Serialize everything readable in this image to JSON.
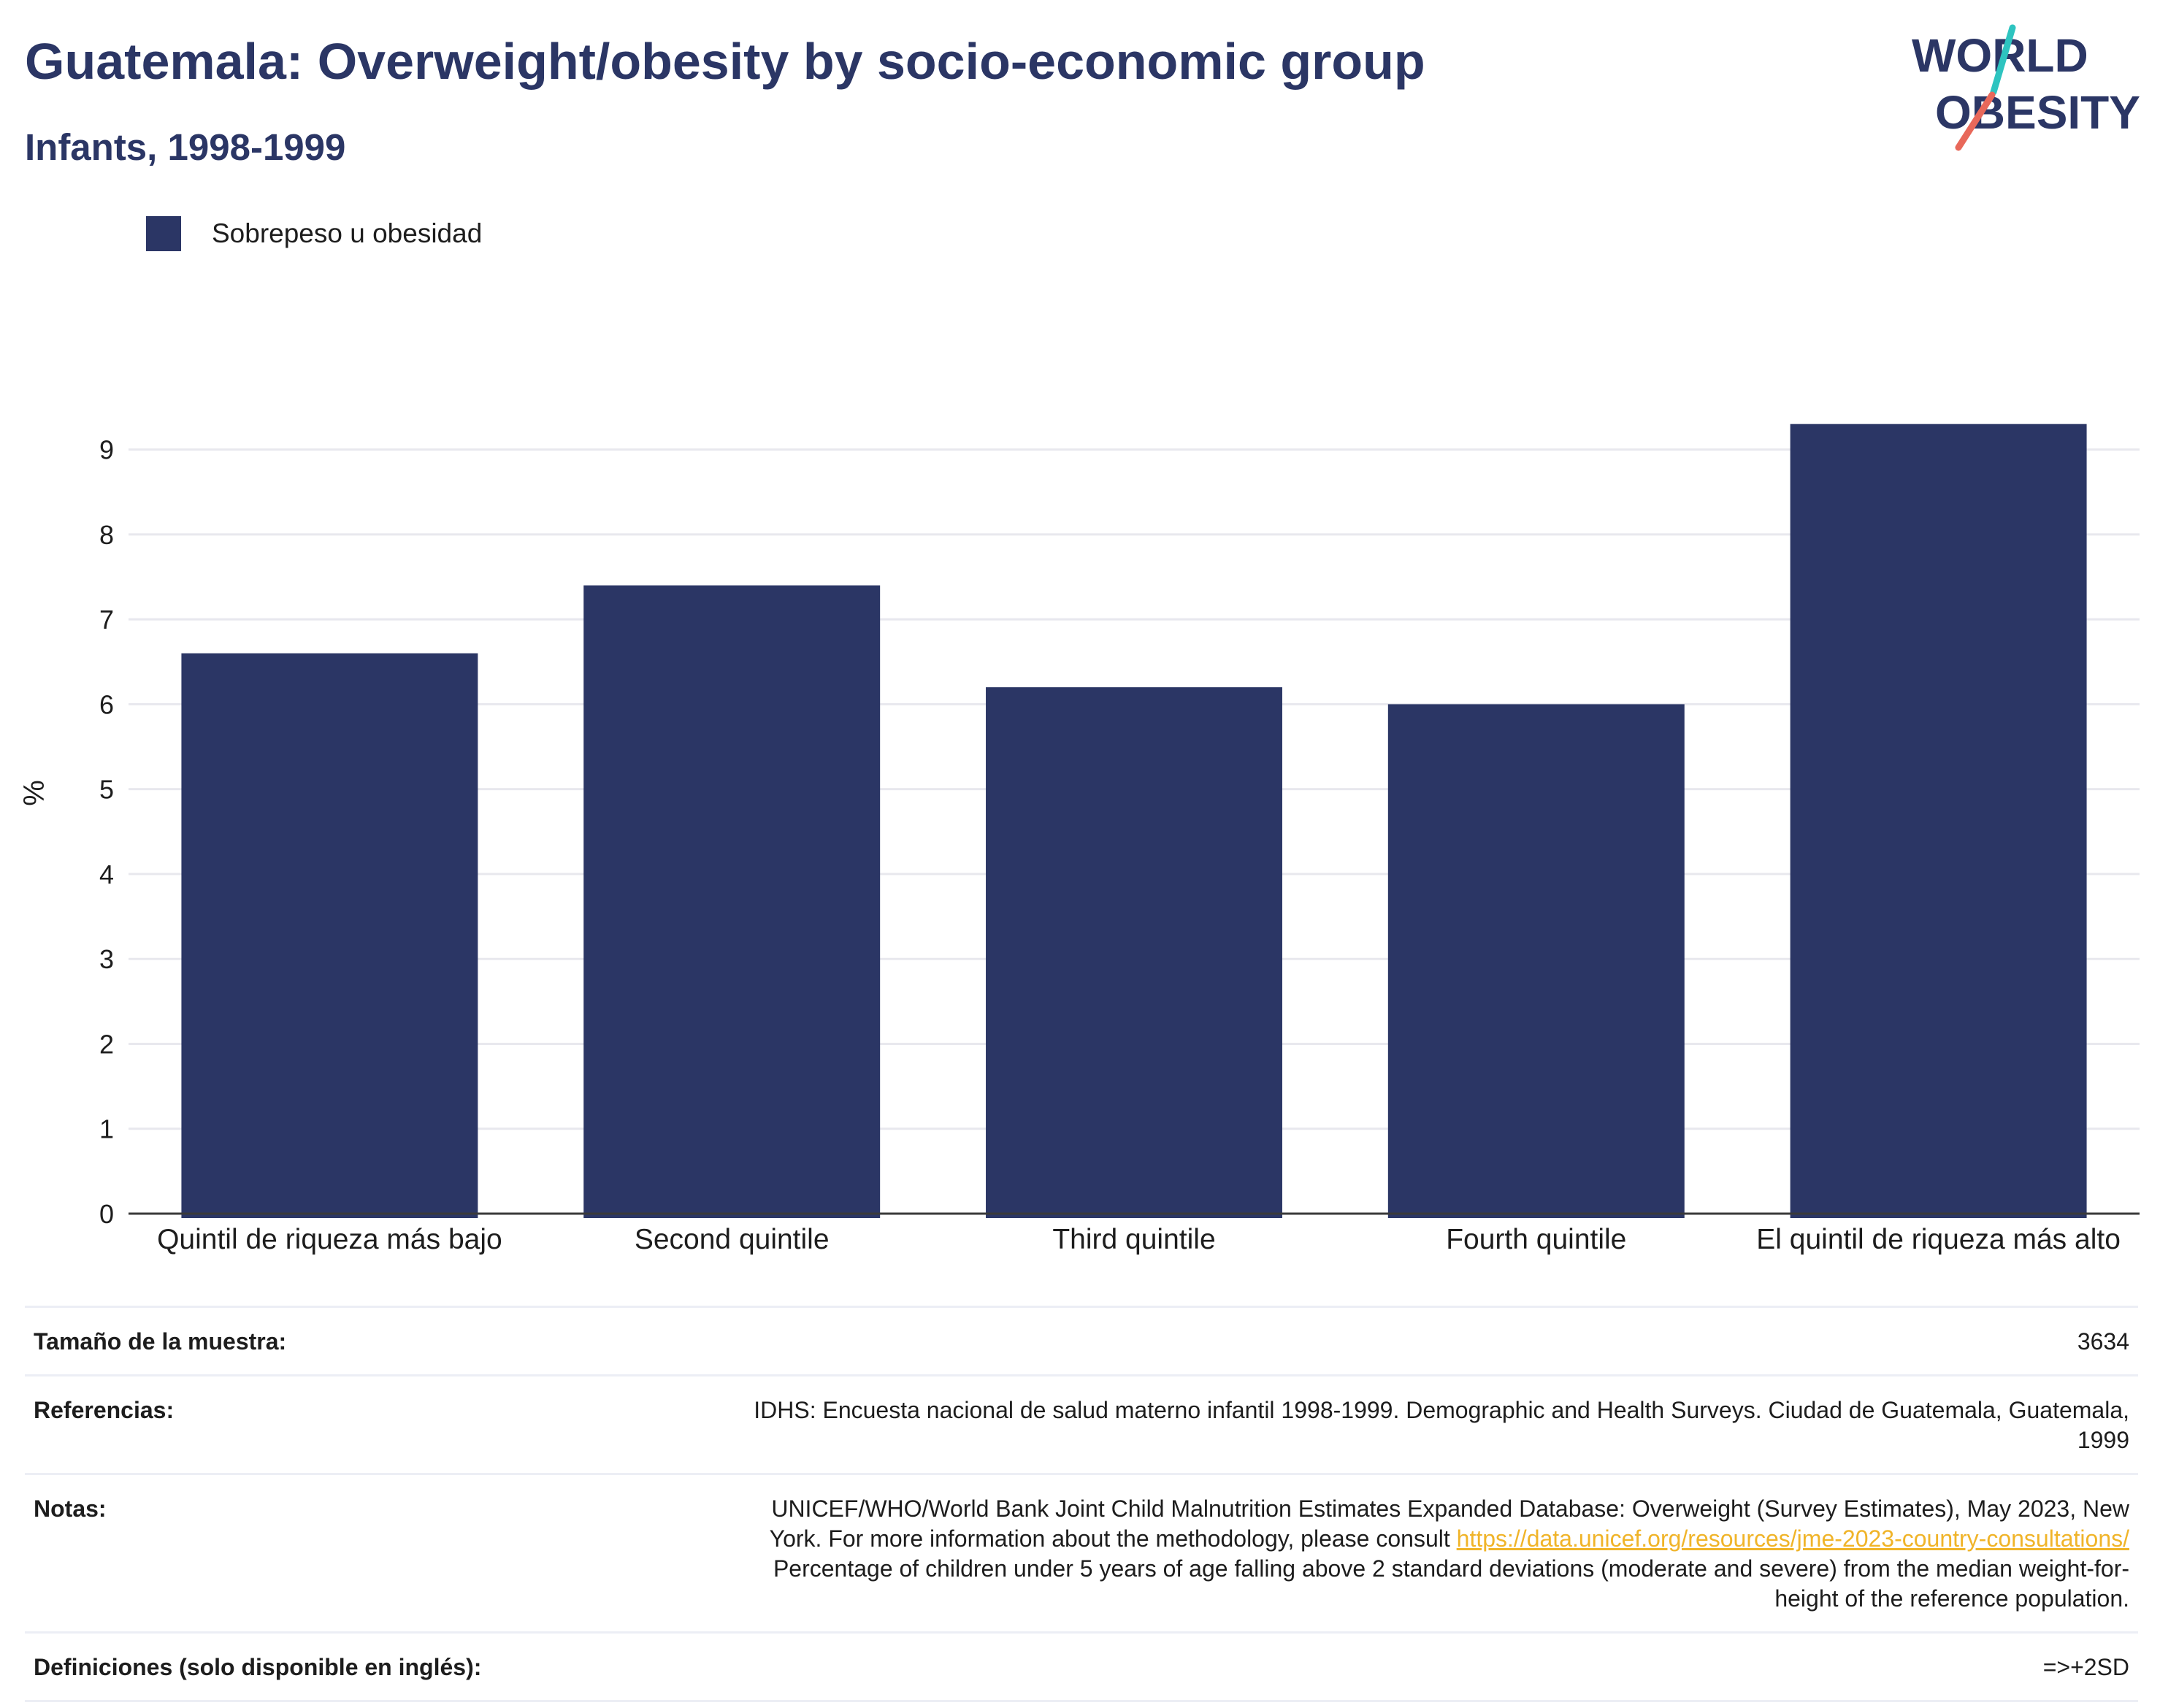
{
  "header": {
    "title": "Guatemala: Overweight/obesity by socio-economic group",
    "subtitle": "Infants, 1998-1999"
  },
  "logo": {
    "line1": "WORLD",
    "line2": "OBESITY"
  },
  "colors": {
    "bar": "#2b3665",
    "title": "#2b3665",
    "link": "#f0b429",
    "logo_teal": "#2ec4c0",
    "logo_red": "#e8685a",
    "grid": "#e8e8ee"
  },
  "chart_data": {
    "type": "bar",
    "categories": [
      "Quintil de riqueza más bajo",
      "Second quintile",
      "Third quintile",
      "Fourth quintile",
      "El quintil de riqueza más alto"
    ],
    "series": [
      {
        "name": "Sobrepeso u obesidad",
        "values": [
          6.6,
          7.4,
          6.2,
          6.0,
          9.3
        ]
      }
    ],
    "ylabel": "%",
    "ylim": [
      0,
      9.65
    ],
    "yticks": [
      0,
      1,
      2,
      3,
      4,
      5,
      6,
      7,
      8,
      9
    ],
    "grid": true,
    "legend_position": "top-left"
  },
  "meta": {
    "sample_label": "Tamaño de la muestra:",
    "sample_value": "3634",
    "references_label": "Referencias:",
    "references_value_1": "IDHS: Encuesta nacional de salud materno infantil 1998-1999. Demographic and Health Surveys. Ciudad de Guatemala, Guatemala,",
    "references_value_2": "1999",
    "notes_label": "Notas:",
    "notes_line_1": "UNICEF/WHO/World Bank Joint Child Malnutrition Estimates Expanded Database: Overweight (Survey Estimates), May 2023, New",
    "notes_line_2_prefix": "York. For more information about the methodology, please consult ",
    "notes_link": "https://data.unicef.org/resources/jme-2023-country-consultations/",
    "notes_line_3": "Percentage of children under 5 years of age falling above 2 standard deviations (moderate and severe) from the median weight-for-",
    "notes_line_4": "height of the reference population.",
    "definitions_label": "Definiciones (solo disponible en inglés):",
    "definitions_value": "=>+2SD"
  }
}
